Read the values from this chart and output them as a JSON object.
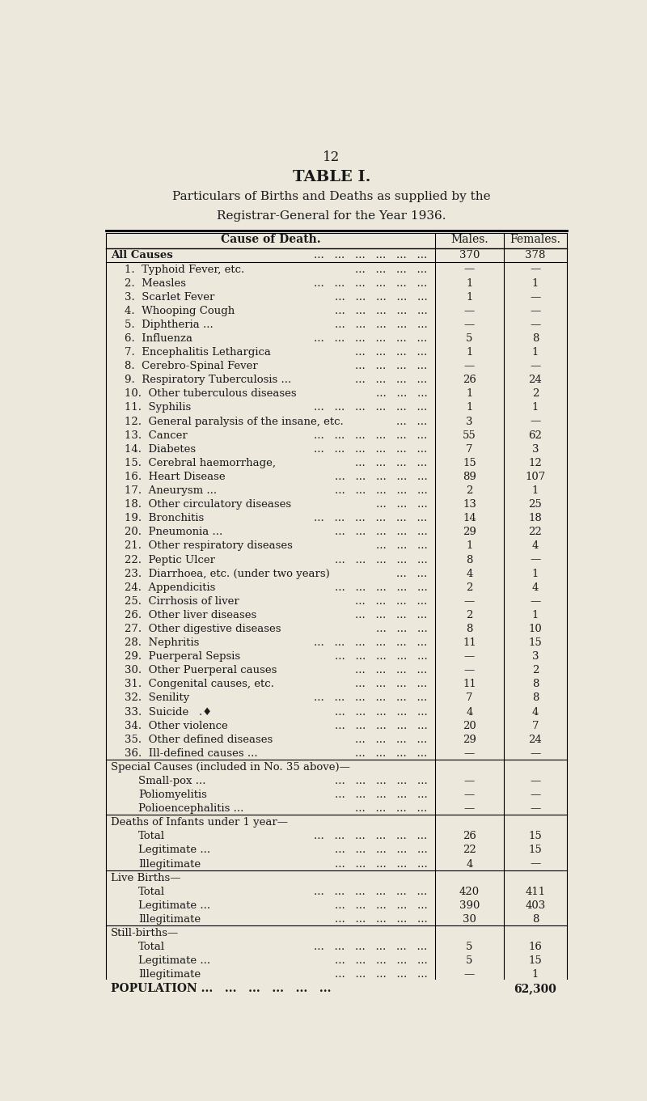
{
  "page_number": "12",
  "title1": "TABLE I.",
  "title2": "Particulars of Births and Deaths as supplied by the",
  "title3": "Registrar-General for the Year 1936.",
  "header_col0": "Cause of Death.",
  "header_col1": "Males.",
  "header_col2": "Females.",
  "bg_color": "#ede8dc",
  "text_color": "#1a1a1a",
  "rows": [
    {
      "label": "All Causes",
      "dots": "...   ...   ...   ...   ...   ...",
      "indent": 0,
      "bold": true,
      "m": "370",
      "f": "378",
      "sep_before": false,
      "sep_after": true,
      "gap_before": false
    },
    {
      "label": "1.  Typhoid Fever, etc.",
      "dots": "...   ...   ...   ...",
      "indent": 1,
      "bold": false,
      "m": "—",
      "f": "—",
      "sep_after": false,
      "gap_before": true
    },
    {
      "label": "2.  Measles",
      "dots": "...   ...   ...   ...   ...   ...",
      "indent": 1,
      "bold": false,
      "m": "1",
      "f": "1",
      "sep_after": false,
      "gap_before": false
    },
    {
      "label": "3.  Scarlet Fever",
      "dots": "...   ...   ...   ...   ...",
      "indent": 1,
      "bold": false,
      "m": "1",
      "f": "—",
      "sep_after": false,
      "gap_before": false
    },
    {
      "label": "4.  Whooping Cough",
      "dots": "...   ...   ...   ...   ...",
      "indent": 1,
      "bold": false,
      "m": "—",
      "f": "—",
      "sep_after": false,
      "gap_before": false
    },
    {
      "label": "5.  Diphtheria ...",
      "dots": "...   ...   ...   ...   ...",
      "indent": 1,
      "bold": false,
      "m": "—",
      "f": "—",
      "sep_after": false,
      "gap_before": false
    },
    {
      "label": "6.  Influenza",
      "dots": "...   ...   ...   ...   ...   ...",
      "indent": 1,
      "bold": false,
      "m": "5",
      "f": "8",
      "sep_after": false,
      "gap_before": false
    },
    {
      "label": "7.  Encephalitis Lethargica",
      "dots": "...   ...   ...   ...",
      "indent": 1,
      "bold": false,
      "m": "1",
      "f": "1",
      "sep_after": false,
      "gap_before": false
    },
    {
      "label": "8.  Cerebro-Spinal Fever",
      "dots": "...   ...   ...   ...",
      "indent": 1,
      "bold": false,
      "m": "—",
      "f": "—",
      "sep_after": false,
      "gap_before": false
    },
    {
      "label": "9.  Respiratory Tuberculosis ...",
      "dots": "...   ...   ...   ...",
      "indent": 1,
      "bold": false,
      "m": "26",
      "f": "24",
      "sep_after": false,
      "gap_before": false
    },
    {
      "label": "10.  Other tuberculous diseases",
      "dots": "...   ...   ...",
      "indent": 1,
      "bold": false,
      "m": "1",
      "f": "2",
      "sep_after": false,
      "gap_before": false
    },
    {
      "label": "11.  Syphilis",
      "dots": "...   ...   ...   ...   ...   ...",
      "indent": 1,
      "bold": false,
      "m": "1",
      "f": "1",
      "sep_after": false,
      "gap_before": false
    },
    {
      "label": "12.  General paralysis of the insane, etc.",
      "dots": "...   ...",
      "indent": 1,
      "bold": false,
      "m": "3",
      "f": "—",
      "sep_after": false,
      "gap_before": false
    },
    {
      "label": "13.  Cancer",
      "dots": "...   ...   ...   ...   ...   ...",
      "indent": 1,
      "bold": false,
      "m": "55",
      "f": "62",
      "sep_after": false,
      "gap_before": false
    },
    {
      "label": "14.  Diabetes",
      "dots": "...   ...   ...   ...   ...   ...",
      "indent": 1,
      "bold": false,
      "m": "7",
      "f": "3",
      "sep_after": false,
      "gap_before": false
    },
    {
      "label": "15.  Cerebral haemorrhage,",
      "dots": "...   ...   ...   ...",
      "indent": 1,
      "bold": false,
      "m": "15",
      "f": "12",
      "sep_after": false,
      "gap_before": false
    },
    {
      "label": "16.  Heart Disease",
      "dots": "...   ...   ...   ...   ...",
      "indent": 1,
      "bold": false,
      "m": "89",
      "f": "107",
      "sep_after": false,
      "gap_before": false
    },
    {
      "label": "17.  Aneurysm ...",
      "dots": "...   ...   ...   ...   ...",
      "indent": 1,
      "bold": false,
      "m": "2",
      "f": "1",
      "sep_after": false,
      "gap_before": false
    },
    {
      "label": "18.  Other circulatory diseases",
      "dots": "...   ...   ...",
      "indent": 1,
      "bold": false,
      "m": "13",
      "f": "25",
      "sep_after": false,
      "gap_before": false
    },
    {
      "label": "19.  Bronchitis",
      "dots": "...   ...   ...   ...   ...   ...",
      "indent": 1,
      "bold": false,
      "m": "14",
      "f": "18",
      "sep_after": false,
      "gap_before": false
    },
    {
      "label": "20.  Pneumonia ...",
      "dots": "...   ...   ...   ...   ...",
      "indent": 1,
      "bold": false,
      "m": "29",
      "f": "22",
      "sep_after": false,
      "gap_before": false
    },
    {
      "label": "21.  Other respiratory diseases",
      "dots": "...   ...   ...",
      "indent": 1,
      "bold": false,
      "m": "1",
      "f": "4",
      "sep_after": false,
      "gap_before": false
    },
    {
      "label": "22.  Peptic Ulcer",
      "dots": "...   ...   ...   ...   ...",
      "indent": 1,
      "bold": false,
      "m": "8",
      "f": "—",
      "sep_after": false,
      "gap_before": false
    },
    {
      "label": "23.  Diarrhoea, etc. (under two years)",
      "dots": "...   ...",
      "indent": 1,
      "bold": false,
      "m": "4",
      "f": "1",
      "sep_after": false,
      "gap_before": false
    },
    {
      "label": "24.  Appendicitis",
      "dots": "...   ...   ...   ...   ...",
      "indent": 1,
      "bold": false,
      "m": "2",
      "f": "4",
      "sep_after": false,
      "gap_before": false
    },
    {
      "label": "25.  Cirrhosis of liver",
      "dots": "...   ...   ...   ...",
      "indent": 1,
      "bold": false,
      "m": "—",
      "f": "—",
      "sep_after": false,
      "gap_before": false
    },
    {
      "label": "26.  Other liver diseases",
      "dots": "...   ...   ...   ...",
      "indent": 1,
      "bold": false,
      "m": "2",
      "f": "1",
      "sep_after": false,
      "gap_before": false
    },
    {
      "label": "27.  Other digestive diseases",
      "dots": "...   ...   ...",
      "indent": 1,
      "bold": false,
      "m": "8",
      "f": "10",
      "sep_after": false,
      "gap_before": false
    },
    {
      "label": "28.  Nephritis",
      "dots": "...   ...   ...   ...   ...   ...",
      "indent": 1,
      "bold": false,
      "m": "11",
      "f": "15",
      "sep_after": false,
      "gap_before": false
    },
    {
      "label": "29.  Puerperal Sepsis",
      "dots": "...   ...   ...   ...   ...",
      "indent": 1,
      "bold": false,
      "m": "—",
      "f": "3",
      "sep_after": false,
      "gap_before": false
    },
    {
      "label": "30.  Other Puerperal causes",
      "dots": "...   ...   ...   ...",
      "indent": 1,
      "bold": false,
      "m": "—",
      "f": "2",
      "sep_after": false,
      "gap_before": false
    },
    {
      "label": "31.  Congenital causes, etc.",
      "dots": "...   ...   ...   ...",
      "indent": 1,
      "bold": false,
      "m": "11",
      "f": "8",
      "sep_after": false,
      "gap_before": false
    },
    {
      "label": "32.  Senility",
      "dots": "...   ...   ...   ...   ...   ...",
      "indent": 1,
      "bold": false,
      "m": "7",
      "f": "8",
      "sep_after": false,
      "gap_before": false
    },
    {
      "label": "33.  Suicide   .♦",
      "dots": "...   ...   ...   ...   ...",
      "indent": 1,
      "bold": false,
      "m": "4",
      "f": "4",
      "sep_after": false,
      "gap_before": false
    },
    {
      "label": "34.  Other violence",
      "dots": "...   ...   ...   ...   ...",
      "indent": 1,
      "bold": false,
      "m": "20",
      "f": "7",
      "sep_after": false,
      "gap_before": false
    },
    {
      "label": "35.  Other defined diseases",
      "dots": "...   ...   ...   ...",
      "indent": 1,
      "bold": false,
      "m": "29",
      "f": "24",
      "sep_after": false,
      "gap_before": false
    },
    {
      "label": "36.  Ill-defined causes ...",
      "dots": "...   ...   ...   ...",
      "indent": 1,
      "bold": false,
      "m": "—",
      "f": "—",
      "sep_after": true,
      "gap_before": false
    }
  ],
  "special_rows": [
    {
      "label": "Special Causes (included in No. 35 above)—",
      "dots": "",
      "indent": 0,
      "bold": false,
      "m": "",
      "f": "",
      "sep_after": false,
      "gap_before": false
    },
    {
      "label": "Small-pox ...",
      "dots": "...   ...   ...   ...   ...",
      "indent": 2,
      "bold": false,
      "m": "—",
      "f": "—",
      "sep_after": false,
      "gap_before": false
    },
    {
      "label": "Poliomyelitis",
      "dots": "...   ...   ...   ...   ...",
      "indent": 2,
      "bold": false,
      "m": "—",
      "f": "—",
      "sep_after": false,
      "gap_before": false
    },
    {
      "label": "Polioencephalitis ...",
      "dots": "...   ...   ...   ...",
      "indent": 2,
      "bold": false,
      "m": "—",
      "f": "—",
      "sep_after": true,
      "gap_before": false
    }
  ],
  "infant_rows": [
    {
      "label": "Deaths of Infants under 1 year—",
      "dots": "",
      "indent": 0,
      "bold": false,
      "m": "",
      "f": "",
      "sep_after": false,
      "gap_before": false
    },
    {
      "label": "Total",
      "dots": "...   ...   ...   ...   ...   ...",
      "indent": 2,
      "bold": false,
      "m": "26",
      "f": "15",
      "sep_after": false,
      "gap_before": false
    },
    {
      "label": "Legitimate ...",
      "dots": "...   ...   ...   ...   ...",
      "indent": 2,
      "bold": false,
      "m": "22",
      "f": "15",
      "sep_after": false,
      "gap_before": false
    },
    {
      "label": "Illegitimate",
      "dots": "...   ...   ...   ...   ...",
      "indent": 2,
      "bold": false,
      "m": "4",
      "f": "—",
      "sep_after": true,
      "gap_before": false
    }
  ],
  "birth_rows": [
    {
      "label": "Live Births—",
      "dots": "",
      "indent": 0,
      "bold": false,
      "m": "",
      "f": "",
      "sep_after": false,
      "gap_before": false
    },
    {
      "label": "Total",
      "dots": "...   ...   ...   ...   ...   ...",
      "indent": 2,
      "bold": false,
      "m": "420",
      "f": "411",
      "sep_after": false,
      "gap_before": false
    },
    {
      "label": "Legitimate ...",
      "dots": "...   ...   ...   ...   ...",
      "indent": 2,
      "bold": false,
      "m": "390",
      "f": "403",
      "sep_after": false,
      "gap_before": false
    },
    {
      "label": "Illegitimate",
      "dots": "...   ...   ...   ...   ...",
      "indent": 2,
      "bold": false,
      "m": "30",
      "f": "8",
      "sep_after": true,
      "gap_before": false
    }
  ],
  "stillbirth_rows": [
    {
      "label": "Still-births—",
      "dots": "",
      "indent": 0,
      "bold": false,
      "m": "",
      "f": "",
      "sep_after": false,
      "gap_before": false
    },
    {
      "label": "Total",
      "dots": "...   ...   ...   ...   ...   ...",
      "indent": 2,
      "bold": false,
      "m": "5",
      "f": "16",
      "sep_after": false,
      "gap_before": false
    },
    {
      "label": "Legitimate ...",
      "dots": "...   ...   ...   ...   ...",
      "indent": 2,
      "bold": false,
      "m": "5",
      "f": "15",
      "sep_after": false,
      "gap_before": false
    },
    {
      "label": "Illegitimate",
      "dots": "...   ...   ...   ...   ...",
      "indent": 2,
      "bold": false,
      "m": "—",
      "f": "1",
      "sep_after": false,
      "gap_before": false
    }
  ],
  "population_label": "POPULATION ...",
  "population_dots": "...   ...   ...   ...   ...",
  "population_value": "62,300"
}
